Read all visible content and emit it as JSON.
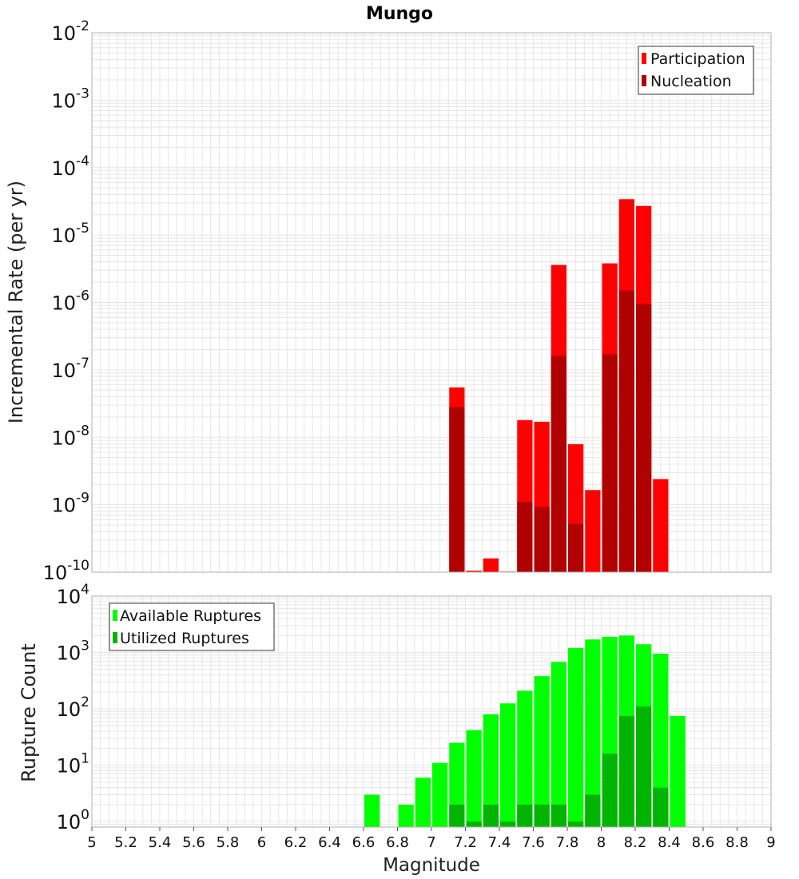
{
  "title": "Mungo",
  "xlabel": "Magnitude",
  "x_ticks": [
    "5",
    "5.2",
    "5.4",
    "5.6",
    "5.8",
    "6",
    "6.2",
    "6.4",
    "6.6",
    "6.8",
    "7",
    "7.2",
    "7.4",
    "7.6",
    "7.8",
    "8",
    "8.2",
    "8.4",
    "8.6",
    "8.8",
    "9"
  ],
  "colors": {
    "participation": "#ff0000",
    "nucleation": "#b00000",
    "available": "#00ff00",
    "utilized": "#00b400",
    "grid": "#e6e6e6",
    "frame": "#b0b0b0"
  },
  "chart_data": [
    {
      "type": "bar",
      "scale": "log",
      "ylabel": "Incremental Rate (per yr)",
      "xlim": [
        5,
        9
      ],
      "ylim": [
        1e-10,
        0.01
      ],
      "y_tick_exponents": [
        "-10",
        "-9",
        "-8",
        "-7",
        "-6",
        "-5",
        "-4",
        "-3",
        "-2"
      ],
      "bar_width": 0.1,
      "legend_position": "top-right",
      "x": [
        7.15,
        7.25,
        7.35,
        7.45,
        7.55,
        7.65,
        7.75,
        7.85,
        7.95,
        8.05,
        8.15,
        8.25,
        8.35
      ],
      "series": [
        {
          "name": "Participation",
          "color_key": "participation",
          "values": [
            5.5e-08,
            1.05e-10,
            1.6e-10,
            1.02e-10,
            1.8e-08,
            1.7e-08,
            3.6e-06,
            7.9e-09,
            1.65e-09,
            3.8e-06,
            3.4e-05,
            2.7e-05,
            2.4e-09
          ]
        },
        {
          "name": "Nucleation",
          "color_key": "nucleation",
          "values": [
            2.8e-08,
            null,
            null,
            null,
            1.1e-09,
            9.3e-10,
            1.6e-07,
            5.2e-10,
            null,
            1.7e-07,
            1.5e-06,
            9.5e-07,
            null
          ]
        }
      ]
    },
    {
      "type": "bar",
      "scale": "log",
      "ylabel": "Rupture Count",
      "xlim": [
        5,
        9
      ],
      "ylim": [
        0.8,
        10000
      ],
      "y_tick_exponents": [
        "0",
        "1",
        "2",
        "3",
        "4"
      ],
      "bar_width": 0.1,
      "legend_position": "top-left",
      "x": [
        6.65,
        6.85,
        6.95,
        7.05,
        7.15,
        7.25,
        7.35,
        7.45,
        7.55,
        7.65,
        7.75,
        7.85,
        7.95,
        8.05,
        8.15,
        8.25,
        8.35,
        8.45
      ],
      "series": [
        {
          "name": "Available Ruptures",
          "color_key": "available",
          "values": [
            3,
            2,
            6,
            11,
            25,
            42,
            80,
            125,
            210,
            380,
            680,
            1200,
            1700,
            1900,
            2000,
            1400,
            950,
            75
          ]
        },
        {
          "name": "Utilized Ruptures",
          "color_key": "utilized",
          "values": [
            null,
            null,
            null,
            null,
            2,
            1,
            2,
            1,
            2,
            2,
            2,
            1,
            3,
            16,
            75,
            110,
            4,
            null
          ]
        }
      ]
    }
  ]
}
